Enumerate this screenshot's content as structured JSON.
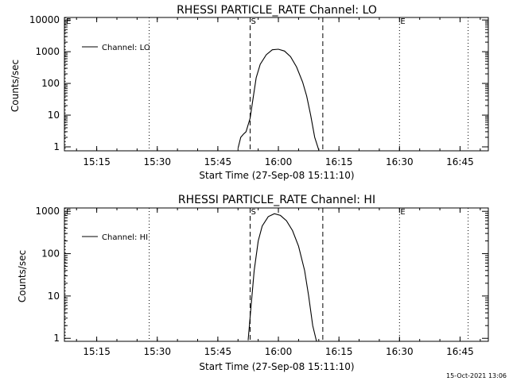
{
  "footer": {
    "timestamp": "15-Oct-2021 13:06"
  },
  "chart_data": [
    {
      "type": "line",
      "title": "RHESSI PARTICLE_RATE Channel: LO",
      "xlabel": "Start Time (27-Sep-08 15:11:10)",
      "ylabel": "Counts/sec",
      "yscale": "log",
      "xlim": [
        "15:07",
        "16:52"
      ],
      "ylim": [
        0.75,
        12000
      ],
      "xticks": [
        "15:15",
        "15:30",
        "15:45",
        "16:00",
        "16:15",
        "16:30",
        "16:45"
      ],
      "yticks": [
        {
          "value": 1,
          "label": "1"
        },
        {
          "value": 10,
          "label": "10"
        },
        {
          "value": 100,
          "label": "100"
        },
        {
          "value": 1000,
          "label": "1000"
        },
        {
          "value": 10000,
          "label": "10000"
        }
      ],
      "legend": {
        "position": "top-left",
        "entries": [
          "Channel: LO"
        ]
      },
      "markers": [
        {
          "label": "E",
          "time": "15:07",
          "style": "dotted"
        },
        {
          "label": "",
          "time": "15:28",
          "style": "dotted"
        },
        {
          "label": "S",
          "time": "15:53",
          "style": "dashed"
        },
        {
          "label": "",
          "time": "16:11",
          "style": "dashed"
        },
        {
          "label": "E",
          "time": "16:30",
          "style": "dotted"
        },
        {
          "label": "",
          "time": "16:47",
          "style": "dotted"
        }
      ],
      "series": [
        {
          "name": "Channel: LO",
          "x": [
            "15:50:00",
            "15:50:40",
            "15:51:20",
            "15:52:00",
            "15:53:00",
            "15:53:40",
            "15:54:30",
            "15:55:30",
            "15:57:00",
            "15:58:30",
            "16:00:00",
            "16:01:30",
            "16:03:00",
            "16:04:30",
            "16:06:00",
            "16:07:00",
            "16:08:00",
            "16:09:00",
            "16:10:00"
          ],
          "y": [
            0.9,
            2,
            2.5,
            3,
            8,
            30,
            150,
            400,
            800,
            1150,
            1200,
            1050,
            700,
            330,
            110,
            40,
            10,
            2,
            0.8
          ]
        }
      ]
    },
    {
      "type": "line",
      "title": "RHESSI PARTICLE_RATE Channel: HI",
      "xlabel": "Start Time (27-Sep-08 15:11:10)",
      "ylabel": "Counts/sec",
      "yscale": "log",
      "xlim": [
        "15:07",
        "16:52"
      ],
      "ylim": [
        0.85,
        1200
      ],
      "xticks": [
        "15:15",
        "15:30",
        "15:45",
        "16:00",
        "16:15",
        "16:30",
        "16:45"
      ],
      "yticks": [
        {
          "value": 1,
          "label": "1"
        },
        {
          "value": 10,
          "label": "10"
        },
        {
          "value": 100,
          "label": "100"
        },
        {
          "value": 1000,
          "label": "1000"
        }
      ],
      "legend": {
        "position": "top-left",
        "entries": [
          "Channel: HI"
        ]
      },
      "markers": [
        {
          "label": "E",
          "time": "15:07",
          "style": "dotted"
        },
        {
          "label": "",
          "time": "15:28",
          "style": "dotted"
        },
        {
          "label": "S",
          "time": "15:53",
          "style": "dashed"
        },
        {
          "label": "",
          "time": "16:11",
          "style": "dashed"
        },
        {
          "label": "E",
          "time": "16:30",
          "style": "dotted"
        },
        {
          "label": "",
          "time": "16:47",
          "style": "dotted"
        }
      ],
      "series": [
        {
          "name": "Channel: HI",
          "x": [
            "15:52:30",
            "15:53:10",
            "15:54:00",
            "15:55:00",
            "15:56:00",
            "15:57:30",
            "15:59:00",
            "16:00:30",
            "16:02:00",
            "16:03:30",
            "16:05:00",
            "16:06:30",
            "16:07:30",
            "16:08:30",
            "16:09:30"
          ],
          "y": [
            0.9,
            5,
            40,
            200,
            450,
            750,
            880,
            800,
            600,
            350,
            150,
            40,
            10,
            2,
            0.8
          ]
        }
      ]
    }
  ]
}
